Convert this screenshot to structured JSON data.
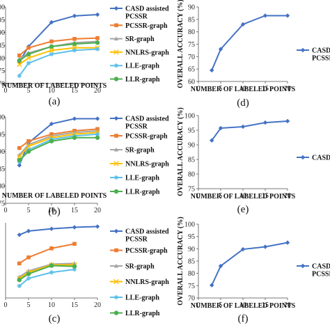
{
  "chart_data": [
    {
      "panel": "(a)",
      "type": "line",
      "xlabel": "NUMBER OF LABELED POINTS",
      "ylabel": "",
      "x_ticks": [
        0,
        5,
        10,
        15,
        20
      ],
      "y_ticks": [
        "70",
        "75",
        "80",
        "85",
        "90",
        "95",
        "00"
      ],
      "xlim": [
        0,
        20
      ],
      "ylim": [
        70,
        100
      ],
      "legend_position": "right",
      "series": [
        {
          "name": "CASD assisted PCSSR",
          "color": "#4472C4",
          "marker": "diamond",
          "x": [
            3,
            5,
            10,
            15,
            20
          ],
          "y": [
            78.5,
            84.5,
            94,
            96.5,
            97
          ]
        },
        {
          "name": "PCSSR-graph",
          "color": "#ED7D31",
          "marker": "square",
          "x": [
            3,
            5,
            10,
            15,
            20
          ],
          "y": [
            81,
            84,
            86.5,
            87.5,
            87.8
          ]
        },
        {
          "name": "SR-graph",
          "color": "#A5A5A5",
          "marker": "triangle",
          "x": [
            3,
            5,
            10,
            15,
            20
          ],
          "y": [
            79.5,
            82,
            84.5,
            86,
            86.5
          ]
        },
        {
          "name": "NNLRS-graph",
          "color": "#FFC000",
          "marker": "cross",
          "x": [
            3,
            5,
            10,
            15,
            20
          ],
          "y": [
            77.5,
            80,
            83,
            84,
            84
          ]
        },
        {
          "name": "LLE-graph",
          "color": "#5BC0EB",
          "marker": "star",
          "x": [
            3,
            5,
            10,
            15,
            20
          ],
          "y": [
            73,
            78,
            81.5,
            83,
            83.5
          ]
        },
        {
          "name": "LLR-graph",
          "color": "#4CAF50",
          "marker": "circle",
          "x": [
            3,
            5,
            10,
            15,
            20
          ],
          "y": [
            79,
            81.5,
            84.5,
            85.5,
            86
          ]
        }
      ]
    },
    {
      "panel": "(b)",
      "type": "line",
      "xlabel": "NUMBER OF LABELED POINTS",
      "ylabel": "",
      "x_ticks": [
        0,
        5,
        10,
        15,
        20
      ],
      "y_ticks": [
        "75",
        "80",
        "85",
        "90",
        "95",
        "00"
      ],
      "xlim": [
        0,
        20
      ],
      "ylim": [
        75,
        100
      ],
      "legend_position": "right",
      "series": [
        {
          "name": "CASD assisted PCSSR",
          "color": "#4472C4",
          "marker": "diamond",
          "x": [
            3,
            5,
            10,
            15,
            20
          ],
          "y": [
            86,
            92.5,
            98,
            99.5,
            99.5
          ]
        },
        {
          "name": "PCSSR-graph",
          "color": "#ED7D31",
          "marker": "square",
          "x": [
            3,
            5,
            10,
            15,
            20
          ],
          "y": [
            91,
            93,
            95,
            96,
            96.5
          ]
        },
        {
          "name": "SR-graph",
          "color": "#A5A5A5",
          "marker": "triangle",
          "x": [
            3,
            5,
            10,
            15,
            20
          ],
          "y": [
            89,
            92,
            94.5,
            95.5,
            96
          ]
        },
        {
          "name": "NNLRS-graph",
          "color": "#FFC000",
          "marker": "cross",
          "x": [
            3,
            5,
            10,
            15,
            20
          ],
          "y": [
            88.5,
            91.5,
            94,
            95,
            95.5
          ]
        },
        {
          "name": "LLE-graph",
          "color": "#5BC0EB",
          "marker": "star",
          "x": [
            3,
            5,
            10,
            15,
            20
          ],
          "y": [
            87,
            90.5,
            93.5,
            94.5,
            95
          ]
        },
        {
          "name": "LLR-graph",
          "color": "#4CAF50",
          "marker": "circle",
          "x": [
            3,
            5,
            10,
            15,
            20
          ],
          "y": [
            87.5,
            90,
            93,
            94,
            94
          ]
        }
      ]
    },
    {
      "panel": "(c)",
      "type": "line",
      "xlabel": "",
      "ylabel": "",
      "x_ticks": [
        0,
        5,
        10,
        15,
        20
      ],
      "y_ticks": [],
      "xlim": [
        0,
        20
      ],
      "ylim": [
        50,
        100
      ],
      "legend_position": "right",
      "series": [
        {
          "name": "CASD assisted PCSSR",
          "color": "#4472C4",
          "marker": "diamond",
          "x": [
            3,
            5,
            10,
            15,
            20
          ],
          "y": [
            92,
            94.5,
            96,
            97,
            97.5
          ]
        },
        {
          "name": "PCSSR-graph",
          "color": "#ED7D31",
          "marker": "square",
          "x": [
            3,
            5,
            10,
            15
          ],
          "y": [
            73,
            77,
            83,
            86
          ]
        },
        {
          "name": "SR-graph",
          "color": "#A5A5A5",
          "marker": "triangle",
          "x": [
            3,
            5,
            10,
            15
          ],
          "y": [
            64,
            68,
            72.5,
            73
          ]
        },
        {
          "name": "NNLRS-graph",
          "color": "#FFC000",
          "marker": "cross",
          "x": [
            3,
            5,
            10,
            15
          ],
          "y": [
            63,
            67,
            72,
            72
          ]
        },
        {
          "name": "LLE-graph",
          "color": "#5BC0EB",
          "marker": "star",
          "x": [
            3,
            5,
            10,
            15
          ],
          "y": [
            58,
            63,
            67,
            69
          ]
        },
        {
          "name": "LLR-graph",
          "color": "#4CAF50",
          "marker": "circle",
          "x": [
            3,
            5,
            10,
            15
          ],
          "y": [
            62,
            66,
            71.5,
            71
          ]
        }
      ]
    },
    {
      "panel": "(d)",
      "type": "line",
      "xlabel": "NUMBER OF LABELED POINTS",
      "ylabel": "OVERALL ACCURACY (%)",
      "x_ticks": [
        0,
        5,
        10,
        15,
        20
      ],
      "y_ticks": [
        "60",
        "65",
        "70",
        "75",
        "80",
        "85",
        "90"
      ],
      "xlim": [
        0,
        20
      ],
      "ylim": [
        60,
        90
      ],
      "legend_position": "right",
      "series": [
        {
          "name": "CASD assisted PCSSR",
          "color": "#4472C4",
          "marker": "diamond",
          "x": [
            3,
            5,
            10,
            15,
            20
          ],
          "y": [
            64.5,
            73,
            83,
            86.5,
            86.5
          ]
        }
      ]
    },
    {
      "panel": "(e)",
      "type": "line",
      "xlabel": "NUMBER OF LABELED POINTS",
      "ylabel": "OVERALL ACCURACY (%)",
      "x_ticks": [
        0,
        5,
        10,
        15,
        20
      ],
      "y_ticks": [
        "75",
        "80",
        "85",
        "90",
        "95",
        "100"
      ],
      "xlim": [
        0,
        20
      ],
      "ylim": [
        75,
        100
      ],
      "legend_position": "right",
      "series": [
        {
          "name": "CASD assisted PCSSR",
          "color": "#4472C4",
          "marker": "diamond",
          "x": [
            3,
            5,
            10,
            15,
            20
          ],
          "y": [
            91.5,
            95.7,
            96.2,
            97.6,
            98.1
          ]
        }
      ]
    },
    {
      "panel": "(f)",
      "type": "line",
      "xlabel": "NUMBER OF LABELED POINTS",
      "ylabel": "OVERALL ACCURACY (%)",
      "x_ticks": [
        0,
        5,
        10,
        15,
        20
      ],
      "y_ticks": [
        "70",
        "75",
        "80",
        "85",
        "90",
        "95",
        "100"
      ],
      "xlim": [
        0,
        20
      ],
      "ylim": [
        70,
        100
      ],
      "legend_position": "right",
      "series": [
        {
          "name": "CASD assisted PCSSR",
          "color": "#4472C4",
          "marker": "diamond",
          "x": [
            3,
            5,
            10,
            15,
            20
          ],
          "y": [
            75.2,
            83,
            89.8,
            90.8,
            92.5
          ]
        }
      ]
    }
  ]
}
